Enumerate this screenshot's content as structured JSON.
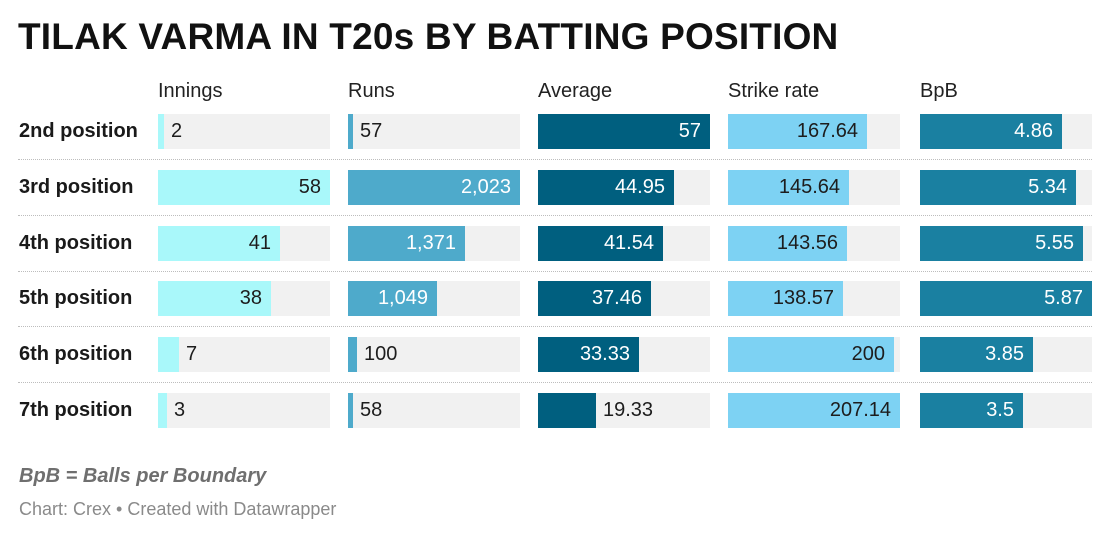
{
  "title": "TILAK VARMA IN T20s BY BATTING POSITION",
  "footnote": "BpB = Balls per Boundary",
  "source": "Chart: Crex • Created with Datawrapper",
  "chart_data": {
    "type": "table",
    "title": "TILAK VARMA IN T20s BY BATTING POSITION",
    "rows": [
      "2nd position",
      "3rd position",
      "4th position",
      "5th position",
      "6th position",
      "7th position"
    ],
    "columns": [
      {
        "name": "Innings",
        "color": "#a9f8fa",
        "max": 58,
        "values": [
          2,
          58,
          41,
          38,
          7,
          3
        ],
        "labels": [
          "2",
          "58",
          "41",
          "38",
          "7",
          "3"
        ]
      },
      {
        "name": "Runs",
        "color": "#4eaacb",
        "max": 2023,
        "values": [
          57,
          2023,
          1371,
          1049,
          100,
          58
        ],
        "labels": [
          "57",
          "2,023",
          "1,371",
          "1,049",
          "100",
          "58"
        ]
      },
      {
        "name": "Average",
        "color": "#005f7f",
        "max": 57,
        "values": [
          57,
          44.95,
          41.54,
          37.46,
          33.33,
          19.33
        ],
        "labels": [
          "57",
          "44.95",
          "41.54",
          "37.46",
          "33.33",
          "19.33"
        ]
      },
      {
        "name": "Strike rate",
        "color": "#7dd2f3",
        "max": 207.14,
        "values": [
          167.64,
          145.64,
          143.56,
          138.57,
          200,
          207.14
        ],
        "labels": [
          "167.64",
          "145.64",
          "143.56",
          "138.57",
          "200",
          "207.14"
        ]
      },
      {
        "name": "BpB",
        "color": "#1a80a1",
        "max": 5.87,
        "values": [
          4.86,
          5.34,
          5.55,
          5.87,
          3.85,
          3.5
        ],
        "labels": [
          "4.86",
          "5.34",
          "5.55",
          "5.87",
          "3.85",
          "3.5"
        ]
      }
    ]
  }
}
